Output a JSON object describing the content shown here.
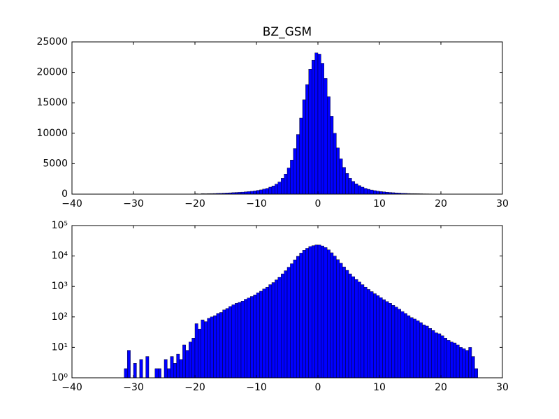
{
  "chart_data": [
    {
      "type": "histogram",
      "title": "BZ_GSM",
      "color": "#0000ff",
      "log_y": false,
      "bins": [
        -32,
        -31.5,
        -31,
        -30.5,
        -30,
        -29.5,
        -29,
        -28.5,
        -28,
        -27.5,
        -27,
        -26.5,
        -26,
        -25.5,
        -25,
        -24.5,
        -24,
        -23.5,
        -23,
        -22.5,
        -22,
        -21.5,
        -21,
        -20.5,
        -20,
        -19.5,
        -19,
        -18.5,
        -18,
        -17.5,
        -17,
        -16.5,
        -16,
        -15.5,
        -15,
        -14.5,
        -14,
        -13.5,
        -13,
        -12.5,
        -12,
        -11.5,
        -11,
        -10.5,
        -10,
        -9.5,
        -9,
        -8.5,
        -8,
        -7.5,
        -7,
        -6.5,
        -6,
        -5.5,
        -5,
        -4.5,
        -4,
        -3.5,
        -3,
        -2.5,
        -2,
        -1.5,
        -1,
        -0.5,
        0,
        0.5,
        1,
        1.5,
        2,
        2.5,
        3,
        3.5,
        4,
        4.5,
        5,
        5.5,
        6,
        6.5,
        7,
        7.5,
        8,
        8.5,
        9,
        9.5,
        10,
        10.5,
        11,
        11.5,
        12,
        12.5,
        13,
        13.5,
        14,
        14.5,
        15,
        15.5,
        16,
        16.5,
        17,
        17.5,
        18,
        18.5,
        19,
        19.5,
        20,
        20.5,
        21,
        21.5,
        22,
        22.5,
        23,
        23.5,
        24,
        24.5,
        25,
        25.5,
        26,
        26.5,
        27
      ],
      "values": [
        1,
        2,
        8,
        1,
        3,
        1,
        4,
        1,
        5,
        1,
        1,
        2,
        2,
        1,
        4,
        2,
        5,
        3,
        6,
        4,
        12,
        8,
        15,
        20,
        60,
        40,
        80,
        70,
        90,
        100,
        110,
        130,
        140,
        170,
        190,
        220,
        250,
        280,
        300,
        330,
        380,
        420,
        470,
        530,
        620,
        700,
        830,
        950,
        1150,
        1350,
        1650,
        2000,
        2600,
        3300,
        4300,
        5600,
        7500,
        9800,
        12500,
        15500,
        18000,
        20500,
        22000,
        23200,
        23000,
        21500,
        19000,
        16000,
        12800,
        10000,
        7600,
        5800,
        4400,
        3400,
        2600,
        2100,
        1700,
        1400,
        1150,
        950,
        800,
        680,
        580,
        500,
        430,
        370,
        320,
        280,
        240,
        210,
        180,
        150,
        130,
        110,
        95,
        85,
        75,
        65,
        55,
        50,
        42,
        36,
        30,
        28,
        24,
        20,
        17,
        15,
        14,
        12,
        10,
        9,
        8,
        10,
        5,
        2,
        1,
        1
      ],
      "xlim": [
        -40,
        30
      ],
      "xticks": [
        {
          "value": -40,
          "label": "−40"
        },
        {
          "value": -30,
          "label": "−30"
        },
        {
          "value": -20,
          "label": "−20"
        },
        {
          "value": -10,
          "label": "−10"
        },
        0,
        10,
        20,
        30
      ],
      "ylim": [
        0,
        25000
      ],
      "yticks": [
        0,
        5000,
        10000,
        15000,
        20000,
        25000
      ]
    },
    {
      "type": "histogram",
      "color": "#0000ff",
      "log_y": true,
      "bins": [
        -32,
        -31.5,
        -31,
        -30.5,
        -30,
        -29.5,
        -29,
        -28.5,
        -28,
        -27.5,
        -27,
        -26.5,
        -26,
        -25.5,
        -25,
        -24.5,
        -24,
        -23.5,
        -23,
        -22.5,
        -22,
        -21.5,
        -21,
        -20.5,
        -20,
        -19.5,
        -19,
        -18.5,
        -18,
        -17.5,
        -17,
        -16.5,
        -16,
        -15.5,
        -15,
        -14.5,
        -14,
        -13.5,
        -13,
        -12.5,
        -12,
        -11.5,
        -11,
        -10.5,
        -10,
        -9.5,
        -9,
        -8.5,
        -8,
        -7.5,
        -7,
        -6.5,
        -6,
        -5.5,
        -5,
        -4.5,
        -4,
        -3.5,
        -3,
        -2.5,
        -2,
        -1.5,
        -1,
        -0.5,
        0,
        0.5,
        1,
        1.5,
        2,
        2.5,
        3,
        3.5,
        4,
        4.5,
        5,
        5.5,
        6,
        6.5,
        7,
        7.5,
        8,
        8.5,
        9,
        9.5,
        10,
        10.5,
        11,
        11.5,
        12,
        12.5,
        13,
        13.5,
        14,
        14.5,
        15,
        15.5,
        16,
        16.5,
        17,
        17.5,
        18,
        18.5,
        19,
        19.5,
        20,
        20.5,
        21,
        21.5,
        22,
        22.5,
        23,
        23.5,
        24,
        24.5,
        25,
        25.5,
        26,
        26.5,
        27
      ],
      "values": [
        1,
        2,
        8,
        1,
        3,
        1,
        4,
        1,
        5,
        1,
        1,
        2,
        2,
        1,
        4,
        2,
        5,
        3,
        6,
        4,
        12,
        8,
        15,
        20,
        60,
        40,
        80,
        70,
        90,
        100,
        110,
        130,
        140,
        170,
        190,
        220,
        250,
        280,
        300,
        330,
        380,
        420,
        470,
        530,
        620,
        700,
        830,
        950,
        1150,
        1350,
        1650,
        2000,
        2600,
        3300,
        4300,
        5600,
        7500,
        9800,
        12500,
        15500,
        18000,
        20500,
        22000,
        23200,
        23000,
        21500,
        19000,
        16000,
        12800,
        10000,
        7600,
        5800,
        4400,
        3400,
        2600,
        2100,
        1700,
        1400,
        1150,
        950,
        800,
        680,
        580,
        500,
        430,
        370,
        320,
        280,
        240,
        210,
        180,
        150,
        130,
        110,
        95,
        85,
        75,
        65,
        55,
        50,
        42,
        36,
        30,
        28,
        24,
        20,
        17,
        15,
        14,
        12,
        10,
        9,
        8,
        10,
        5,
        2,
        1,
        1
      ],
      "xlim": [
        -40,
        30
      ],
      "xticks": [
        {
          "value": -40,
          "label": "−40"
        },
        {
          "value": -30,
          "label": "−30"
        },
        {
          "value": -20,
          "label": "−20"
        },
        {
          "value": -10,
          "label": "−10"
        },
        0,
        10,
        20,
        30
      ],
      "ylim": [
        1,
        100000
      ],
      "yticks": [
        {
          "value": 1,
          "label": "10⁰"
        },
        {
          "value": 10,
          "label": "10¹"
        },
        {
          "value": 100,
          "label": "10²"
        },
        {
          "value": 1000,
          "label": "10³"
        },
        {
          "value": 10000,
          "label": "10⁴"
        },
        {
          "value": 100000,
          "label": "10⁵"
        }
      ]
    }
  ]
}
